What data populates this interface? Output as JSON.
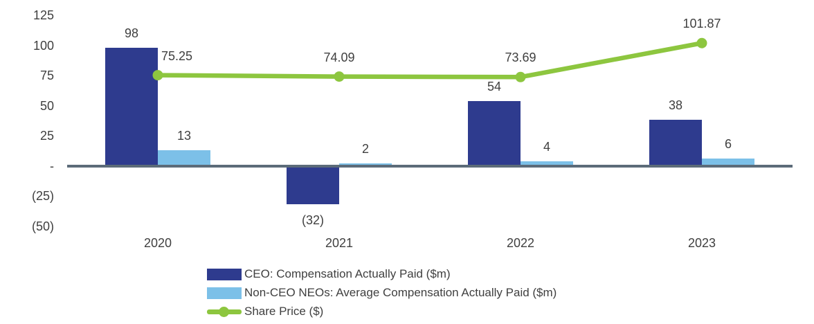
{
  "chart_data": {
    "type": "combo",
    "title": "",
    "categories": [
      "2020",
      "2021",
      "2022",
      "2023"
    ],
    "series": [
      {
        "name": "CEO: Compensation Actually Paid ($m)",
        "type": "bar",
        "color": "#2E3B8E",
        "values": [
          98,
          -32,
          54,
          38
        ],
        "labels": [
          "98",
          "(32)",
          "54",
          "38"
        ]
      },
      {
        "name": "Non-CEO NEOs: Average Compensation Actually Paid ($m)",
        "type": "bar",
        "color": "#7CC0E8",
        "values": [
          13,
          2,
          4,
          6
        ],
        "labels": [
          "13",
          "2",
          "4",
          "6"
        ]
      },
      {
        "name": "Share Price ($)",
        "type": "line",
        "color": "#8DC63F",
        "values": [
          75.25,
          74.09,
          73.69,
          101.87
        ],
        "labels": [
          "75.25",
          "74.09",
          "73.69",
          "101.87"
        ]
      }
    ],
    "y_axis": {
      "ylim": [
        -50,
        125
      ],
      "tick_interval": 25,
      "ticks": [
        {
          "value": 125,
          "label": "125"
        },
        {
          "value": 100,
          "label": "100"
        },
        {
          "value": 75,
          "label": "75"
        },
        {
          "value": 50,
          "label": "50"
        },
        {
          "value": 25,
          "label": "25"
        },
        {
          "value": 0,
          "label": "-"
        },
        {
          "value": -25,
          "label": "(25)"
        },
        {
          "value": -50,
          "label": "(50)"
        }
      ]
    },
    "x_axis": {
      "labels": [
        "2020",
        "2021",
        "2022",
        "2023"
      ]
    },
    "legend": {
      "position": "bottom-left"
    },
    "grid": false,
    "colors": {
      "axis_line": "#5C6B79",
      "text": "#3F3F3F"
    }
  }
}
